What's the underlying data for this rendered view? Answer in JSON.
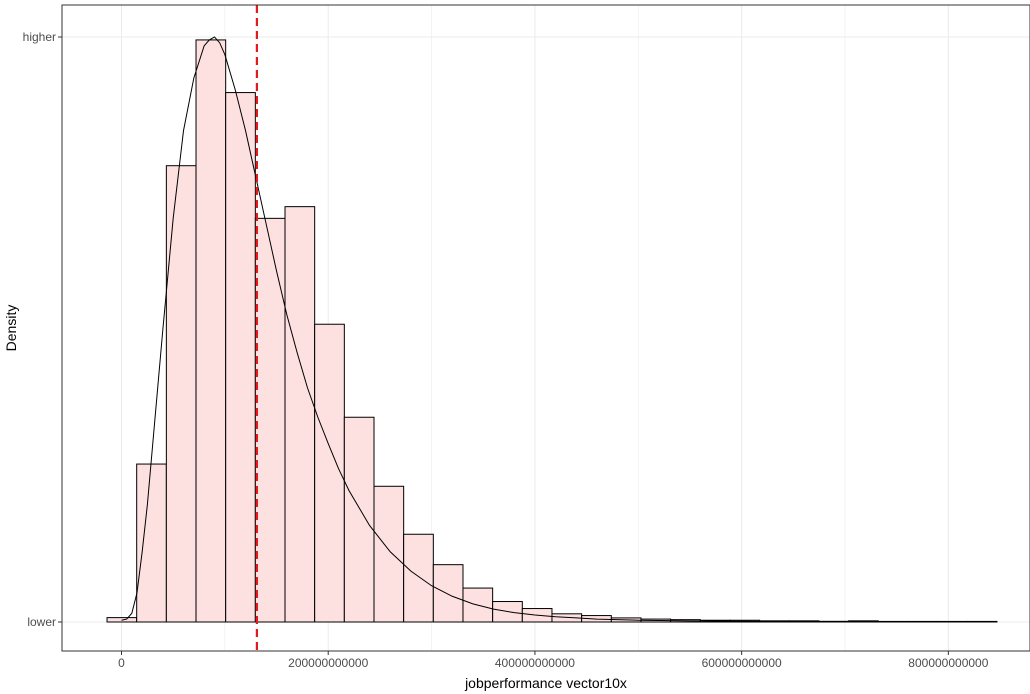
{
  "chart_data": {
    "type": "bar",
    "title": "",
    "xlabel": "jobperformance vector10x",
    "ylabel": "Density",
    "xlim": [
      -55000000000,
      875000000000
    ],
    "ylim": [
      0,
      1
    ],
    "x_ticks": [
      {
        "value": 0,
        "label": "0"
      },
      {
        "value": 200000000000,
        "label": "200000000000"
      },
      {
        "value": 400000000000,
        "label": "400000000000"
      },
      {
        "value": 600000000000,
        "label": "600000000000"
      },
      {
        "value": 800000000000,
        "label": "800000000000"
      }
    ],
    "y_ticks": [
      {
        "value": 0,
        "label": "lower"
      },
      {
        "value": 1,
        "label": "higher"
      }
    ],
    "grid": true,
    "bin_width": 28700000000,
    "histogram": {
      "bin_starts": [
        -14000000000,
        14700000000,
        43400000000,
        72100000000,
        100800000000,
        129500000000,
        158200000000,
        186900000000,
        215600000000,
        244300000000,
        273000000000,
        301700000000,
        330400000000,
        359100000000,
        387800000000,
        416500000000,
        445200000000,
        473900000000,
        502600000000,
        531300000000,
        560000000000,
        588700000000,
        617400000000,
        646100000000,
        674800000000,
        703500000000,
        732200000000,
        760900000000,
        789600000000,
        818300000000
      ],
      "values": [
        0.0075,
        0.27,
        0.78,
        0.995,
        0.905,
        0.69,
        0.71,
        0.509,
        0.35,
        0.232,
        0.15,
        0.098,
        0.058,
        0.035,
        0.023,
        0.014,
        0.011,
        0.007,
        0.005,
        0.004,
        0.003,
        0.003,
        0.002,
        0.002,
        0.001,
        0.002,
        0.001,
        0.001,
        0.001,
        0.001
      ]
    },
    "density_curve": {
      "x": [
        0,
        5000000000,
        10000000000,
        15000000000,
        20000000000,
        25000000000,
        30000000000,
        40000000000,
        50000000000,
        60000000000,
        70000000000,
        80000000000,
        85000000000,
        90000000000,
        95000000000,
        100000000000,
        110000000000,
        120000000000,
        130000000000,
        140000000000,
        150000000000,
        160000000000,
        170000000000,
        180000000000,
        190000000000,
        200000000000,
        210000000000,
        220000000000,
        240000000000,
        260000000000,
        280000000000,
        300000000000,
        320000000000,
        340000000000,
        360000000000,
        380000000000,
        400000000000,
        420000000000,
        440000000000,
        460000000000,
        500000000000,
        550000000000,
        600000000000,
        650000000000,
        700000000000,
        750000000000,
        800000000000,
        837000000000
      ],
      "y": [
        0.003,
        0.005,
        0.015,
        0.05,
        0.12,
        0.2,
        0.3,
        0.5,
        0.69,
        0.84,
        0.93,
        0.985,
        0.995,
        1.0,
        0.99,
        0.97,
        0.91,
        0.84,
        0.76,
        0.68,
        0.6,
        0.525,
        0.46,
        0.4,
        0.35,
        0.305,
        0.262,
        0.225,
        0.165,
        0.12,
        0.087,
        0.062,
        0.044,
        0.031,
        0.022,
        0.016,
        0.012,
        0.009,
        0.007,
        0.005,
        0.003,
        0.002,
        0.0015,
        0.001,
        0.001,
        0.0005,
        0.0005,
        0.0005
      ]
    },
    "reference_line": {
      "x": 131000000000,
      "style": "dashed",
      "color": "#e31a1c"
    },
    "colors": {
      "bar_fill": "#fde0e0",
      "bar_stroke": "#000000",
      "curve": "#000000",
      "grid": "#ebebeb",
      "panel_border": "#333333"
    }
  }
}
